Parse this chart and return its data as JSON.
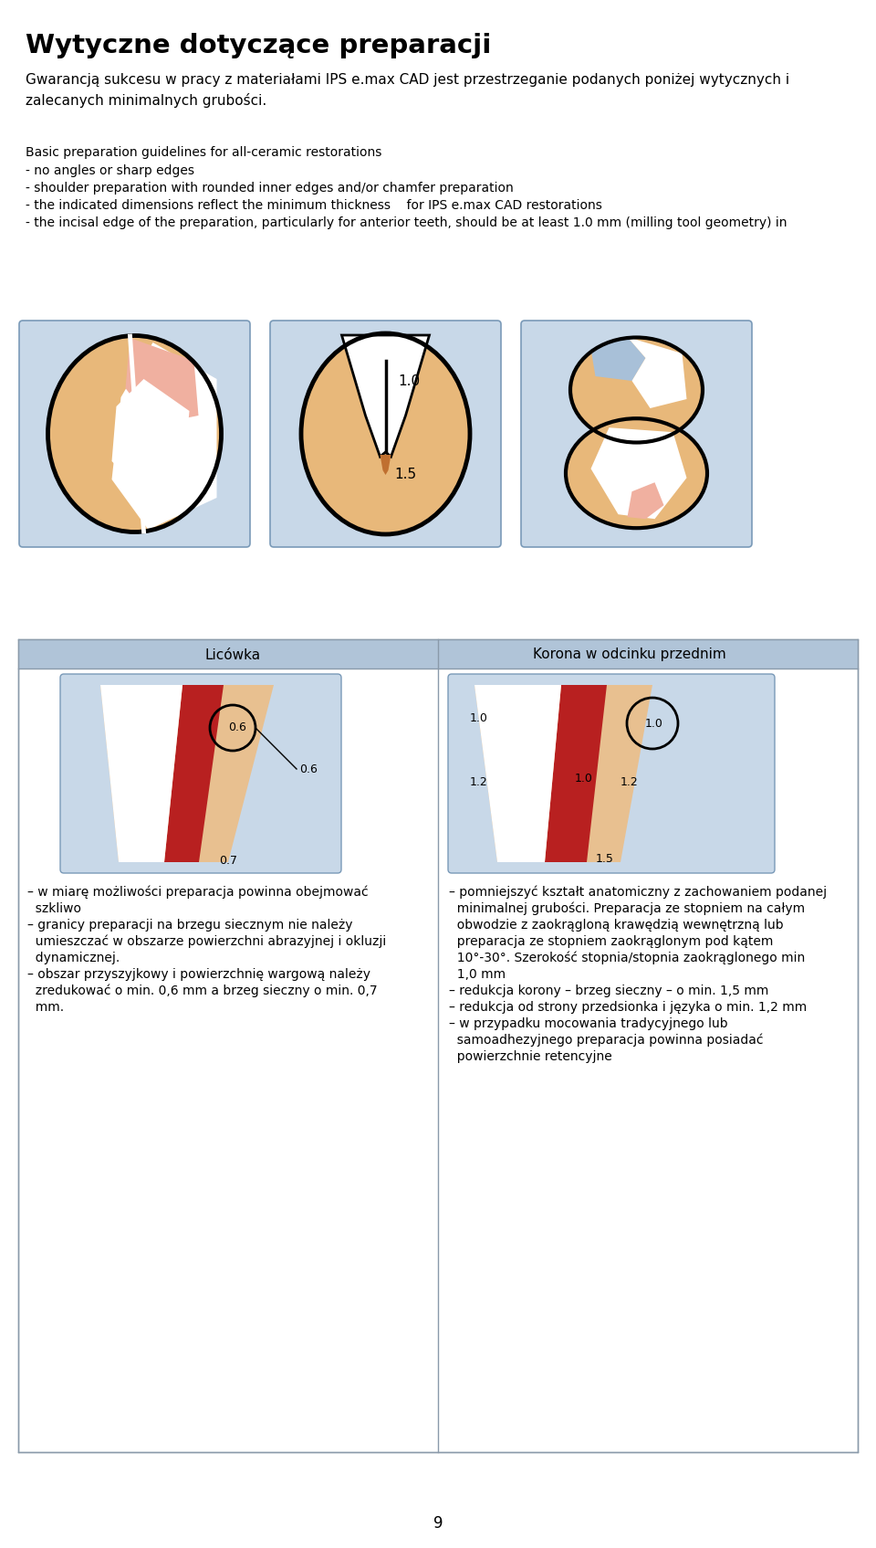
{
  "title": "Wytyczne dotyczące preparacji",
  "subtitle": "Gwarancją sukcesu w pracy z materiałami IPS e.max CAD jest przestrzeganie podanych poniżej wytycznych i\nzalecanych minimalnych grubości.",
  "bullet_intro": "Basic preparation guidelines for all-ceramic restorations",
  "bullets": [
    "- no angles or sharp edges",
    "- shoulder preparation with rounded inner edges and/or chamfer preparation",
    "- the indicated dimensions reflect the minimum thickness    for IPS e.max CAD restorations",
    "- the incisal edge of the preparation, particularly for anterior teeth, should be at least 1.0 mm (milling tool geometry) in"
  ],
  "section_licowka": "Licówka",
  "section_korona": "Korona w odcinku przednim",
  "page_num": "9",
  "bg_color": "#ffffff",
  "box_bg": "#c8d8e8",
  "header_bg": "#b0c4d8",
  "tan_color": "#E8B87A",
  "pink_color": "#F0B0A0",
  "red_color": "#B82020",
  "white_color": "#FFFFFF",
  "blue_color": "#A8C0D8"
}
